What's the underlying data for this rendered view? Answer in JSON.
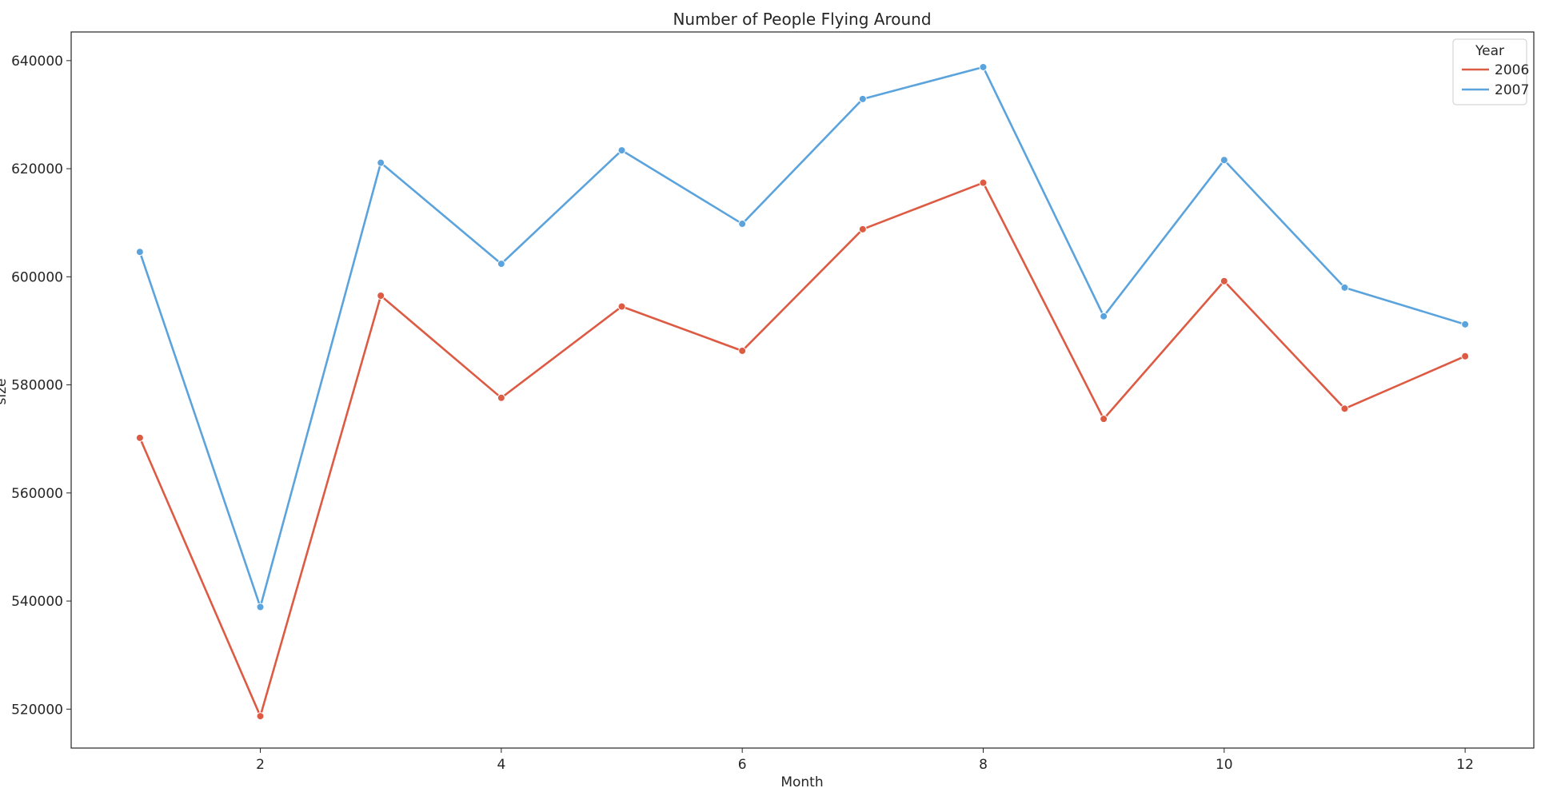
{
  "chart_data": {
    "type": "line",
    "title": "Number of People Flying Around",
    "xlabel": "Month",
    "ylabel": "size",
    "x": [
      1,
      2,
      3,
      4,
      5,
      6,
      7,
      8,
      9,
      10,
      11,
      12
    ],
    "xlim": [
      0.43,
      12.57
    ],
    "ylim": [
      512800,
      645300
    ],
    "x_ticks": [
      2,
      4,
      6,
      8,
      10,
      12
    ],
    "y_ticks": [
      520000,
      540000,
      560000,
      580000,
      600000,
      620000,
      640000
    ],
    "grid": false,
    "legend": {
      "title": "Year",
      "placement": "top-right"
    },
    "series": [
      {
        "name": "2006",
        "color": "#dd5a43",
        "values": [
          570200,
          518700,
          596500,
          577600,
          594500,
          586300,
          608800,
          617400,
          573700,
          599200,
          575600,
          585300
        ]
      },
      {
        "name": "2007",
        "color": "#5ba3dc",
        "values": [
          604600,
          538900,
          621100,
          602400,
          623400,
          609800,
          632900,
          638800,
          592700,
          621600,
          598000,
          591200
        ]
      }
    ]
  }
}
